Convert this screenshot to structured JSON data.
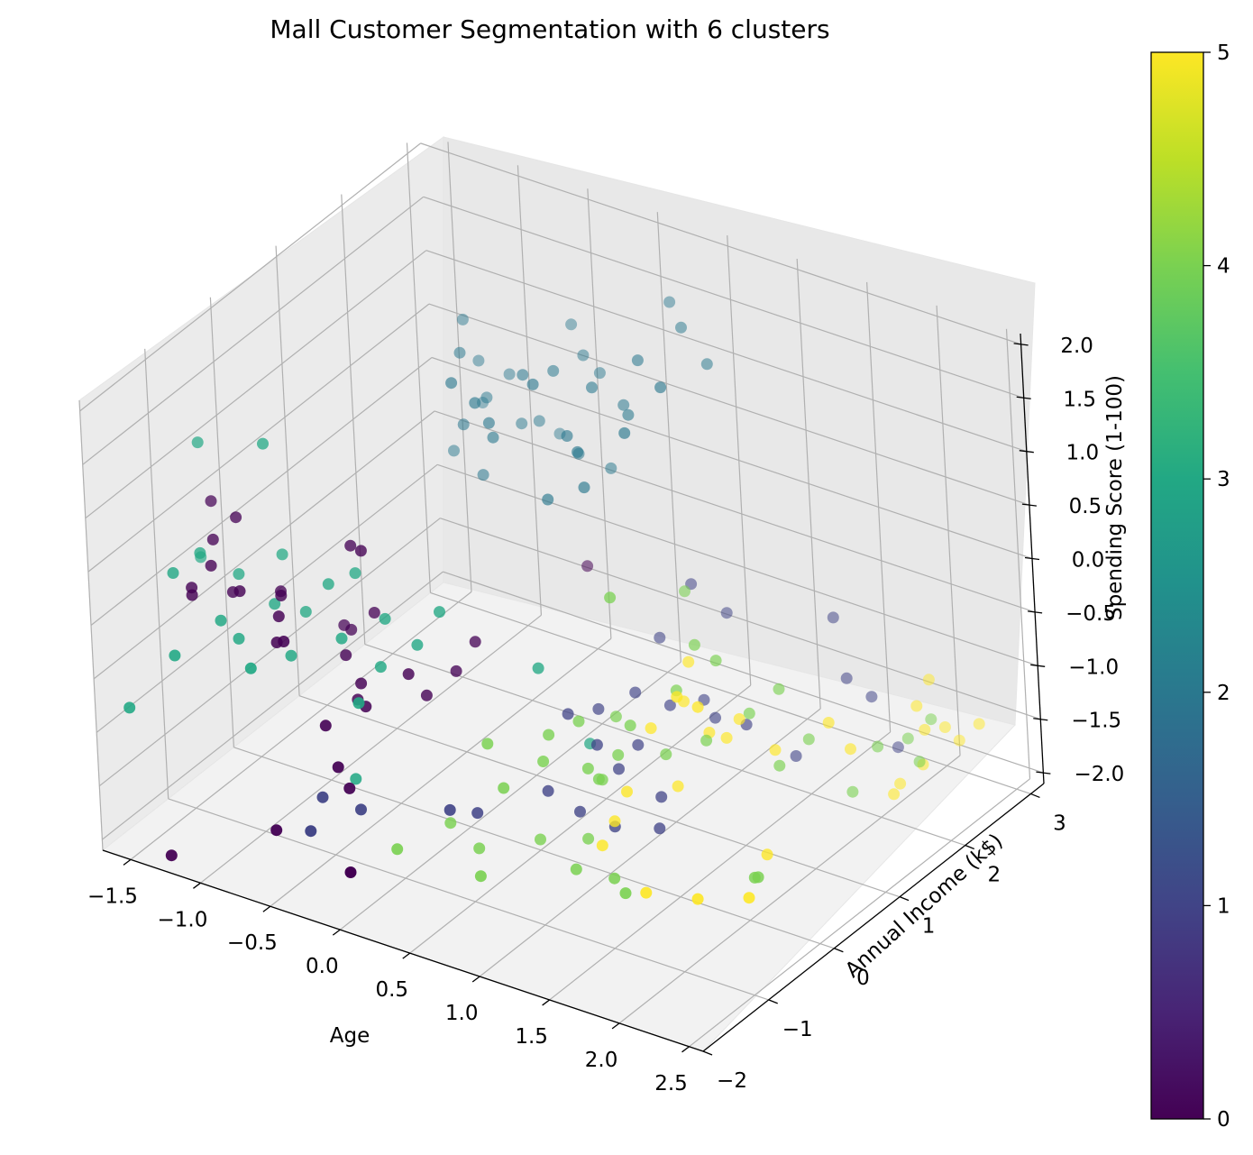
{
  "chart_data": {
    "type": "scatter",
    "projection": "3d",
    "title": "Mall Customer Segmentation with 6 clusters",
    "xlabel": "Age",
    "ylabel": "Annual Income (k$)",
    "zlabel": "Spending Score (1-100)",
    "xlim": [
      -1.7,
      2.6
    ],
    "ylim": [
      -2.0,
      3.2
    ],
    "zlim": [
      -2.1,
      2.1
    ],
    "xticks": [
      "−1.5",
      "−1.0",
      "−0.5",
      "0.0",
      "0.5",
      "1.0",
      "1.5",
      "2.0",
      "2.5"
    ],
    "xtick_values": [
      -1.5,
      -1.0,
      -0.5,
      0.0,
      0.5,
      1.0,
      1.5,
      2.0,
      2.5
    ],
    "yticks": [
      "−2",
      "−1",
      "0",
      "1",
      "2",
      "3"
    ],
    "ytick_values": [
      -2,
      -1,
      0,
      1,
      2,
      3
    ],
    "zticks": [
      "−2.0",
      "−1.5",
      "−1.0",
      "−0.5",
      "0.0",
      "0.5",
      "1.0",
      "1.5",
      "2.0"
    ],
    "ztick_values": [
      -2.0,
      -1.5,
      -1.0,
      -0.5,
      0.0,
      0.5,
      1.0,
      1.5,
      2.0
    ],
    "grid": true,
    "colormap": "viridis",
    "colorbar": {
      "ticks": [
        "0",
        "1",
        "2",
        "3",
        "4",
        "5"
      ],
      "tick_values": [
        0,
        1,
        2,
        3,
        4,
        5
      ],
      "range": [
        0,
        5
      ]
    },
    "points": [
      {
        "x": -0.54,
        "y": 1.35,
        "z": 1.75,
        "c": 2
      },
      {
        "x": -0.45,
        "y": 1.1,
        "z": 1.6,
        "c": 2
      },
      {
        "x": -0.49,
        "y": 1.45,
        "z": 1.34,
        "c": 2
      },
      {
        "x": -0.37,
        "y": 1.3,
        "z": 1.12,
        "c": 2
      },
      {
        "x": -0.4,
        "y": 1.0,
        "z": 1.0,
        "c": 2
      },
      {
        "x": -0.58,
        "y": 1.2,
        "z": 0.58,
        "c": 2
      },
      {
        "x": -0.55,
        "y": 1.6,
        "z": 0.85,
        "c": 2
      },
      {
        "x": -0.32,
        "y": 1.55,
        "z": 1.24,
        "c": 2
      },
      {
        "x": -0.3,
        "y": 1.05,
        "z": 0.55,
        "c": 2
      },
      {
        "x": -0.16,
        "y": 0.7,
        "z": 1.45,
        "c": 2
      },
      {
        "x": -0.14,
        "y": 0.85,
        "z": 1.2,
        "c": 2
      },
      {
        "x": -0.14,
        "y": 0.9,
        "z": 1.04,
        "c": 2
      },
      {
        "x": -0.12,
        "y": 1.55,
        "z": 0.89,
        "c": 2
      },
      {
        "x": -0.1,
        "y": 1.8,
        "z": 0.66,
        "c": 2
      },
      {
        "x": 0.1,
        "y": 1.35,
        "z": 1.55,
        "c": 2
      },
      {
        "x": 0.15,
        "y": 1.7,
        "z": 1.55,
        "c": 2
      },
      {
        "x": 0.18,
        "y": 1.5,
        "z": 0.74,
        "c": 2
      },
      {
        "x": 0.3,
        "y": 1.1,
        "z": 1.15,
        "c": 2
      },
      {
        "x": 0.24,
        "y": 1.75,
        "z": 1.4,
        "c": 2
      },
      {
        "x": 0.35,
        "y": 1.62,
        "z": 0.62,
        "c": 2
      },
      {
        "x": 0.4,
        "y": 1.3,
        "z": 1.55,
        "c": 2
      },
      {
        "x": 0.62,
        "y": 1.55,
        "z": 1.78,
        "c": 2
      },
      {
        "x": 0.48,
        "y": 0.95,
        "z": 0.82,
        "c": 2
      },
      {
        "x": 0.72,
        "y": 1.1,
        "z": 1.36,
        "c": 2
      },
      {
        "x": 0.42,
        "y": 1.0,
        "z": 1.1,
        "c": 2
      },
      {
        "x": 0.85,
        "y": 1.4,
        "z": 1.7,
        "c": 2
      },
      {
        "x": 0.58,
        "y": 1.45,
        "z": 1.3,
        "c": 2
      },
      {
        "x": 0.45,
        "y": 1.65,
        "z": 1.24,
        "c": 2
      },
      {
        "x": -0.3,
        "y": 0.65,
        "z": 1.6,
        "c": 2
      },
      {
        "x": -0.05,
        "y": 1.2,
        "z": 1.52,
        "c": 2
      },
      {
        "x": 0.12,
        "y": 1.0,
        "z": 1.6,
        "c": 2
      },
      {
        "x": 0.9,
        "y": 2.0,
        "z": 1.65,
        "c": 2
      },
      {
        "x": 0.75,
        "y": 1.95,
        "z": 1.95,
        "c": 2
      },
      {
        "x": 0.6,
        "y": 2.1,
        "z": 2.05,
        "c": 2
      },
      {
        "x": 0.0,
        "y": 1.85,
        "z": 1.7,
        "c": 2
      },
      {
        "x": -0.2,
        "y": 1.45,
        "z": 0.88,
        "c": 2
      },
      {
        "x": 0.26,
        "y": 0.85,
        "z": 0.66,
        "c": 2
      },
      {
        "x": -1.55,
        "y": -0.6,
        "z": 1.1,
        "c": 3
      },
      {
        "x": -1.1,
        "y": -0.55,
        "z": 1.26,
        "c": 3
      },
      {
        "x": -1.48,
        "y": -1.2,
        "z": 0.2,
        "c": 3
      },
      {
        "x": -1.4,
        "y": -0.95,
        "z": 0.3,
        "c": 3
      },
      {
        "x": -1.62,
        "y": -0.5,
        "z": -0.05,
        "c": 3
      },
      {
        "x": -1.25,
        "y": -0.7,
        "z": 0.05,
        "c": 3
      },
      {
        "x": -1.05,
        "y": -0.45,
        "z": 0.2,
        "c": 3
      },
      {
        "x": -0.95,
        "y": -0.8,
        "z": -0.05,
        "c": 3
      },
      {
        "x": -0.85,
        "y": -0.55,
        "z": -0.2,
        "c": 3
      },
      {
        "x": -0.7,
        "y": -0.5,
        "z": 0.1,
        "c": 3
      },
      {
        "x": -0.75,
        "y": -1.0,
        "z": -0.35,
        "c": 3
      },
      {
        "x": -0.6,
        "y": -0.3,
        "z": 0.15,
        "c": 3
      },
      {
        "x": -0.5,
        "y": -0.75,
        "z": -0.2,
        "c": 3
      },
      {
        "x": -0.35,
        "y": -0.4,
        "z": -0.12,
        "c": 3
      },
      {
        "x": -0.3,
        "y": -0.6,
        "z": -0.45,
        "c": 3
      },
      {
        "x": -0.15,
        "y": -0.35,
        "z": -0.3,
        "c": 3
      },
      {
        "x": -0.25,
        "y": -1.05,
        "z": -0.55,
        "c": 3
      },
      {
        "x": -0.05,
        "y": -0.2,
        "z": -0.02,
        "c": 3
      },
      {
        "x": -1.15,
        "y": -1.2,
        "z": -0.1,
        "c": 3
      },
      {
        "x": -1.55,
        "y": -1.8,
        "z": -0.8,
        "c": 3
      },
      {
        "x": -0.35,
        "y": -0.95,
        "z": -1.35,
        "c": 3
      },
      {
        "x": -1.3,
        "y": -1.6,
        "z": -0.3,
        "c": 3
      },
      {
        "x": 0.45,
        "y": 0.2,
        "z": -0.52,
        "c": 3
      },
      {
        "x": 0.6,
        "y": 0.6,
        "z": -1.35,
        "c": 3
      },
      {
        "x": -0.8,
        "y": -1.5,
        "z": -0.25,
        "c": 3
      },
      {
        "x": -1.05,
        "y": -1.15,
        "z": -0.25,
        "c": 3
      },
      {
        "x": -1.45,
        "y": -0.65,
        "z": 0.62,
        "c": 0
      },
      {
        "x": -1.35,
        "y": -0.85,
        "z": 0.4,
        "c": 0
      },
      {
        "x": -1.25,
        "y": -0.7,
        "z": 0.58,
        "c": 0
      },
      {
        "x": -1.3,
        "y": -1.0,
        "z": 0.25,
        "c": 0
      },
      {
        "x": -1.4,
        "y": -1.1,
        "z": 0.05,
        "c": 0
      },
      {
        "x": -1.35,
        "y": -1.2,
        "z": 0.05,
        "c": 0
      },
      {
        "x": -1.2,
        "y": -0.9,
        "z": 0.0,
        "c": 0
      },
      {
        "x": -1.1,
        "y": -1.0,
        "z": 0.1,
        "c": 0
      },
      {
        "x": -1.0,
        "y": -0.6,
        "z": -0.05,
        "c": 0
      },
      {
        "x": -0.9,
        "y": -0.8,
        "z": 0.05,
        "c": 0
      },
      {
        "x": -0.85,
        "y": -0.95,
        "z": -0.05,
        "c": 0
      },
      {
        "x": -0.7,
        "y": -1.2,
        "z": -0.1,
        "c": 0
      },
      {
        "x": -0.55,
        "y": -0.45,
        "z": 0.5,
        "c": 0
      },
      {
        "x": -0.45,
        "y": -0.5,
        "z": 0.52,
        "c": 0
      },
      {
        "x": -0.8,
        "y": -1.1,
        "z": -0.2,
        "c": 0
      },
      {
        "x": -0.65,
        "y": -0.3,
        "z": -0.4,
        "c": 0
      },
      {
        "x": -0.55,
        "y": -0.6,
        "z": -0.45,
        "c": 0
      },
      {
        "x": -0.4,
        "y": -0.7,
        "z": -0.6,
        "c": 0
      },
      {
        "x": -0.3,
        "y": -0.85,
        "z": -0.7,
        "c": 0
      },
      {
        "x": -0.15,
        "y": -0.5,
        "z": -0.5,
        "c": 0
      },
      {
        "x": -0.1,
        "y": -0.35,
        "z": -0.75,
        "c": 0
      },
      {
        "x": 0.0,
        "y": -0.1,
        "z": -0.6,
        "c": 0
      },
      {
        "x": 0.05,
        "y": 0.1,
        "z": -0.4,
        "c": 0
      },
      {
        "x": -0.45,
        "y": -1.15,
        "z": -0.8,
        "c": 0
      },
      {
        "x": -0.3,
        "y": -1.3,
        "z": -1.05,
        "c": 0
      },
      {
        "x": -0.25,
        "y": -1.25,
        "z": -1.25,
        "c": 0
      },
      {
        "x": -0.6,
        "y": -1.65,
        "z": -1.6,
        "c": 0
      },
      {
        "x": -0.1,
        "y": -1.6,
        "z": -1.8,
        "c": 0
      },
      {
        "x": -1.25,
        "y": -1.9,
        "z": -2.0,
        "c": 0
      },
      {
        "x": -0.75,
        "y": -0.2,
        "z": -0.45,
        "c": 0
      },
      {
        "x": 0.2,
        "y": 1.5,
        "z": -0.3,
        "c": 0
      },
      {
        "x": -0.5,
        "y": -0.25,
        "z": -0.2,
        "c": 0
      },
      {
        "x": -0.42,
        "y": -0.72,
        "z": -0.75,
        "c": 0
      },
      {
        "x": -0.4,
        "y": -1.35,
        "z": -1.35,
        "c": 1
      },
      {
        "x": -0.2,
        "y": -1.2,
        "z": -1.45,
        "c": 1
      },
      {
        "x": -0.35,
        "y": -1.65,
        "z": -1.5,
        "c": 1
      },
      {
        "x": 0.25,
        "y": -0.8,
        "z": -1.45,
        "c": 1
      },
      {
        "x": 0.8,
        "y": 1.8,
        "z": -0.35,
        "c": 1
      },
      {
        "x": 0.95,
        "y": 2.0,
        "z": -0.65,
        "c": 1
      },
      {
        "x": 0.7,
        "y": 1.5,
        "z": -0.75,
        "c": 1
      },
      {
        "x": 1.0,
        "y": 1.5,
        "z": -1.2,
        "c": 1
      },
      {
        "x": 0.75,
        "y": 1.0,
        "z": -1.0,
        "c": 1
      },
      {
        "x": 0.6,
        "y": 0.75,
        "z": -1.1,
        "c": 1
      },
      {
        "x": 0.55,
        "y": 0.4,
        "z": -1.0,
        "c": 1
      },
      {
        "x": 0.9,
        "y": 1.2,
        "z": -1.15,
        "c": 1
      },
      {
        "x": 1.1,
        "y": 1.45,
        "z": -1.3,
        "c": 1
      },
      {
        "x": 0.85,
        "y": 0.8,
        "z": -1.35,
        "c": 1
      },
      {
        "x": 1.3,
        "y": 1.5,
        "z": -1.3,
        "c": 1
      },
      {
        "x": 1.55,
        "y": 2.35,
        "z": -0.6,
        "c": 1
      },
      {
        "x": 1.65,
        "y": 2.3,
        "z": -1.1,
        "c": 1
      },
      {
        "x": 1.75,
        "y": 2.45,
        "z": -1.3,
        "c": 1
      },
      {
        "x": 1.5,
        "y": 1.8,
        "z": -1.65,
        "c": 1
      },
      {
        "x": 1.85,
        "y": 2.6,
        "z": -1.8,
        "c": 1
      },
      {
        "x": 0.8,
        "y": 0.6,
        "z": -1.5,
        "c": 1
      },
      {
        "x": 0.3,
        "y": -0.5,
        "z": -1.6,
        "c": 1
      },
      {
        "x": 0.7,
        "y": 0.2,
        "z": -1.75,
        "c": 1
      },
      {
        "x": 1.05,
        "y": 0.7,
        "z": -1.7,
        "c": 1
      },
      {
        "x": 0.9,
        "y": 0.3,
        "z": -1.85,
        "c": 1
      },
      {
        "x": 1.1,
        "y": 0.55,
        "z": -1.9,
        "c": 1
      },
      {
        "x": 0.55,
        "y": 0.05,
        "z": -1.55,
        "c": 1
      },
      {
        "x": 0.75,
        "y": 0.4,
        "z": -1.2,
        "c": 1
      },
      {
        "x": 0.8,
        "y": 0.6,
        "z": 0.1,
        "c": 4
      },
      {
        "x": 1.1,
        "y": 1.2,
        "z": -0.5,
        "c": 4
      },
      {
        "x": 1.2,
        "y": 1.3,
        "z": -0.65,
        "c": 4
      },
      {
        "x": 0.65,
        "y": 0.35,
        "z": -1.0,
        "c": 4
      },
      {
        "x": 0.55,
        "y": 0.1,
        "z": -1.05,
        "c": 4
      },
      {
        "x": 0.55,
        "y": 0.0,
        "z": -1.25,
        "c": 4
      },
      {
        "x": 0.9,
        "y": 0.6,
        "z": -1.05,
        "c": 4
      },
      {
        "x": 0.85,
        "y": 0.5,
        "z": -1.3,
        "c": 4
      },
      {
        "x": 0.75,
        "y": 0.25,
        "z": -1.35,
        "c": 4
      },
      {
        "x": 0.8,
        "y": 0.3,
        "z": -1.45,
        "c": 4
      },
      {
        "x": 1.05,
        "y": 0.8,
        "z": -1.35,
        "c": 4
      },
      {
        "x": 1.35,
        "y": 1.45,
        "z": -1.15,
        "c": 4
      },
      {
        "x": 1.2,
        "y": 1.1,
        "z": -1.3,
        "c": 4
      },
      {
        "x": 1.6,
        "y": 1.8,
        "z": -1.45,
        "c": 4
      },
      {
        "x": 1.55,
        "y": 1.45,
        "z": -1.55,
        "c": 4
      },
      {
        "x": 1.85,
        "y": 2.3,
        "z": -1.65,
        "c": 4
      },
      {
        "x": 1.95,
        "y": 2.55,
        "z": -1.65,
        "c": 4
      },
      {
        "x": 2.05,
        "y": 2.7,
        "z": -1.5,
        "c": 4
      },
      {
        "x": 2.05,
        "y": 2.5,
        "z": -1.8,
        "c": 4
      },
      {
        "x": 1.8,
        "y": 2.0,
        "z": -1.95,
        "c": 4
      },
      {
        "x": 0.05,
        "y": -0.4,
        "z": -1.85,
        "c": 4
      },
      {
        "x": 0.25,
        "y": -0.4,
        "z": -2.0,
        "c": 4
      },
      {
        "x": 0.5,
        "y": 0.0,
        "z": -2.0,
        "c": 4
      },
      {
        "x": 0.7,
        "y": 0.3,
        "z": -2.05,
        "c": 4
      },
      {
        "x": 0.4,
        "y": -0.7,
        "z": -2.05,
        "c": 4
      },
      {
        "x": 0.8,
        "y": -0.1,
        "z": -2.1,
        "c": 4
      },
      {
        "x": 1.05,
        "y": -0.05,
        "z": -2.1,
        "c": 4
      },
      {
        "x": 1.2,
        "y": -0.2,
        "z": -2.1,
        "c": 4
      },
      {
        "x": 1.8,
        "y": 0.55,
        "z": -2.05,
        "c": 4
      },
      {
        "x": 1.75,
        "y": 0.6,
        "z": -2.1,
        "c": 4
      },
      {
        "x": -0.05,
        "y": -1.0,
        "z": -1.85,
        "c": 4
      },
      {
        "x": 0.45,
        "y": -0.4,
        "z": -1.35,
        "c": 4
      },
      {
        "x": 0.3,
        "y": -0.3,
        "z": -1.05,
        "c": 4
      },
      {
        "x": 1.05,
        "y": 1.0,
        "z": -0.85,
        "c": 4
      },
      {
        "x": 0.85,
        "y": 1.6,
        "z": -0.3,
        "c": 4
      },
      {
        "x": 0.7,
        "y": 0.8,
        "z": -1.15,
        "c": 4
      },
      {
        "x": 0.75,
        "y": 0.45,
        "z": -1.55,
        "c": 4
      },
      {
        "x": 1.45,
        "y": 1.7,
        "z": -1.0,
        "c": 4
      },
      {
        "x": 1.0,
        "y": 1.3,
        "z": -0.75,
        "c": 5
      },
      {
        "x": 1.05,
        "y": 1.1,
        "z": -1.0,
        "c": 5
      },
      {
        "x": 0.95,
        "y": 0.8,
        "z": -1.15,
        "c": 5
      },
      {
        "x": 1.2,
        "y": 1.15,
        "z": -1.25,
        "c": 5
      },
      {
        "x": 1.3,
        "y": 1.4,
        "z": -1.2,
        "c": 5
      },
      {
        "x": 1.25,
        "y": 1.3,
        "z": -1.35,
        "c": 5
      },
      {
        "x": 1.5,
        "y": 1.5,
        "z": -1.45,
        "c": 5
      },
      {
        "x": 1.7,
        "y": 1.9,
        "z": -1.3,
        "c": 5
      },
      {
        "x": 2.0,
        "y": 2.6,
        "z": -1.35,
        "c": 5
      },
      {
        "x": 2.05,
        "y": 2.6,
        "z": -1.55,
        "c": 5
      },
      {
        "x": 2.1,
        "y": 2.8,
        "z": -1.6,
        "c": 5
      },
      {
        "x": 2.15,
        "y": 2.9,
        "z": -1.75,
        "c": 5
      },
      {
        "x": 2.05,
        "y": 2.55,
        "z": -1.85,
        "c": 5
      },
      {
        "x": 1.95,
        "y": 2.4,
        "z": -2.0,
        "c": 5
      },
      {
        "x": 1.95,
        "y": 2.3,
        "z": -2.05,
        "c": 5
      },
      {
        "x": 2.25,
        "y": 3.0,
        "z": -1.6,
        "c": 5
      },
      {
        "x": 1.1,
        "y": 0.85,
        "z": -1.65,
        "c": 5
      },
      {
        "x": 0.95,
        "y": 0.4,
        "z": -1.55,
        "c": 5
      },
      {
        "x": 0.9,
        "y": 0.3,
        "z": -1.8,
        "c": 5
      },
      {
        "x": 0.85,
        "y": 0.2,
        "z": -2.0,
        "c": 5
      },
      {
        "x": 1.7,
        "y": 0.9,
        "z": -2.05,
        "c": 5
      },
      {
        "x": 1.3,
        "y": -0.1,
        "z": -2.1,
        "c": 5
      },
      {
        "x": 1.85,
        "y": 0.3,
        "z": -2.1,
        "c": 5
      },
      {
        "x": 1.6,
        "y": 0.05,
        "z": -2.1,
        "c": 5
      },
      {
        "x": 1.3,
        "y": 0.8,
        "z": -0.8,
        "c": 5
      },
      {
        "x": 1.2,
        "y": 0.7,
        "z": -0.7,
        "c": 5
      },
      {
        "x": 1.8,
        "y": 2.0,
        "z": -1.55,
        "c": 5
      },
      {
        "x": 2.0,
        "y": 2.8,
        "z": -1.2,
        "c": 5
      }
    ]
  }
}
